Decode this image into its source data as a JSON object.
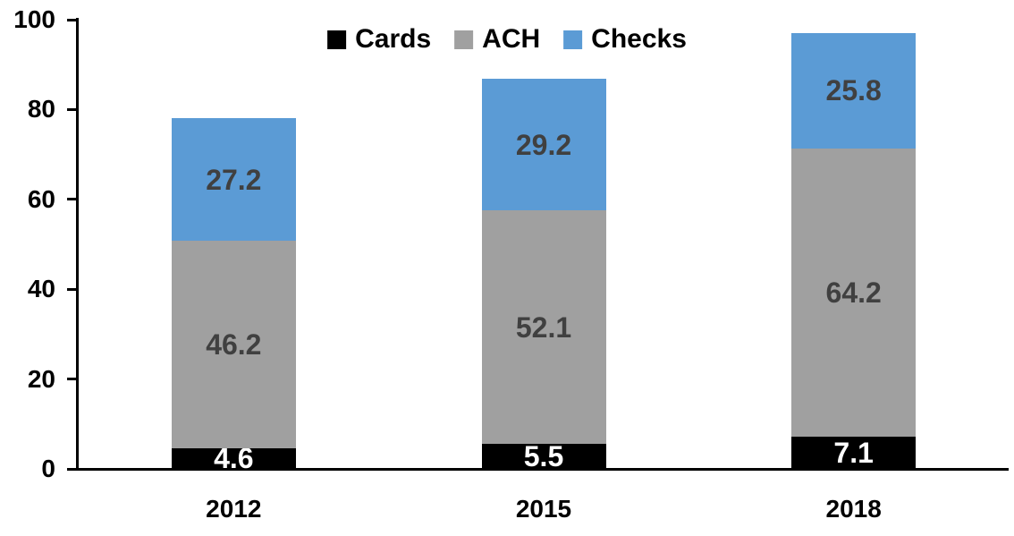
{
  "chart_data": {
    "type": "bar",
    "stacked": true,
    "title": "",
    "xlabel": "",
    "ylabel": "",
    "categories": [
      "2012",
      "2015",
      "2018"
    ],
    "series": [
      {
        "name": "Cards",
        "color": "#000000",
        "label_color": "#ffffff",
        "values": [
          4.6,
          5.5,
          7.1
        ]
      },
      {
        "name": "ACH",
        "color": "#A0A0A0",
        "label_color": "#404040",
        "values": [
          46.2,
          52.1,
          64.2
        ]
      },
      {
        "name": "Checks",
        "color": "#5B9BD5",
        "label_color": "#404040",
        "values": [
          27.2,
          29.2,
          25.8
        ]
      }
    ],
    "ylim": [
      0,
      100
    ],
    "yticks": [
      0,
      20,
      40,
      60,
      80,
      100
    ],
    "grid": false,
    "legend_position": "top",
    "axis_color": "#000000"
  }
}
